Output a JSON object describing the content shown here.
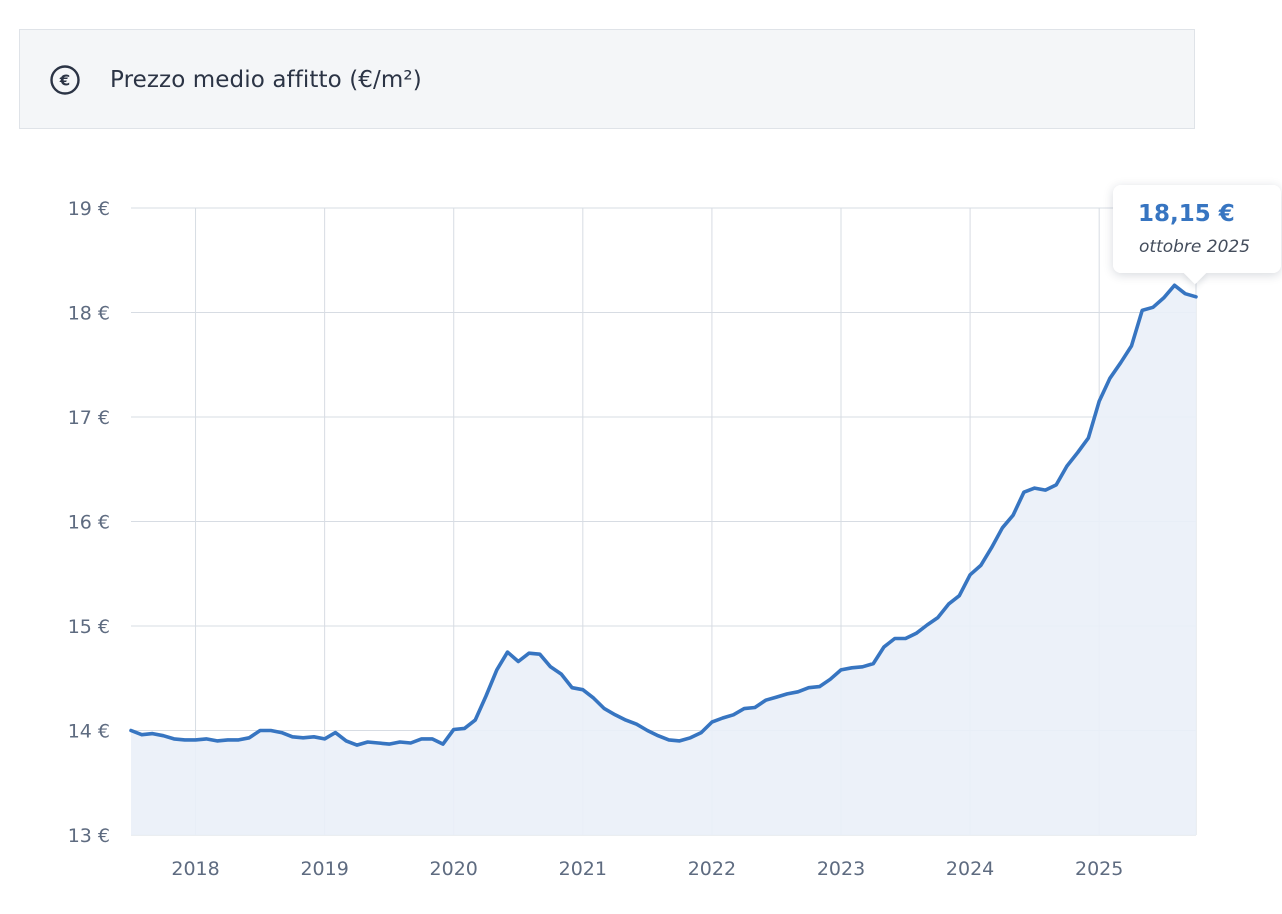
{
  "header": {
    "title": "Prezzo medio affitto (€/m²)",
    "icon": "euro-circle-icon",
    "icon_symbol": "€"
  },
  "tooltip": {
    "value": "18,15 €",
    "date": "ottobre 2025"
  },
  "colors": {
    "line": "#3775c1",
    "area": "#eaf0f8",
    "grid": "#d7dce3",
    "header_bg": "#f4f6f8"
  },
  "chart_data": {
    "type": "area",
    "title": "Prezzo medio affitto (€/m²)",
    "ylim": [
      13,
      19
    ],
    "y_ticks": [
      {
        "value": 13,
        "label": "13 €"
      },
      {
        "value": 14,
        "label": "14 €"
      },
      {
        "value": 15,
        "label": "15 €"
      },
      {
        "value": 16,
        "label": "16 €"
      },
      {
        "value": 17,
        "label": "17 €"
      },
      {
        "value": 18,
        "label": "18 €"
      },
      {
        "value": 19,
        "label": "19 €"
      }
    ],
    "x_ticks": [
      "2018",
      "2019",
      "2020",
      "2021",
      "2022",
      "2023",
      "2024",
      "2025"
    ],
    "x_start": "2017-07",
    "grid": true,
    "series": [
      {
        "x": [
          "2017-07",
          "2017-08",
          "2017-09",
          "2017-10",
          "2017-11",
          "2017-12",
          "2018-01",
          "2018-02",
          "2018-03",
          "2018-04",
          "2018-05",
          "2018-06",
          "2018-07",
          "2018-08",
          "2018-09",
          "2018-10",
          "2018-11",
          "2018-12",
          "2019-01",
          "2019-02",
          "2019-03",
          "2019-04",
          "2019-05",
          "2019-06",
          "2019-07",
          "2019-08",
          "2019-09",
          "2019-10",
          "2019-11",
          "2019-12",
          "2020-01",
          "2020-02",
          "2020-03",
          "2020-04",
          "2020-05",
          "2020-06",
          "2020-07",
          "2020-08",
          "2020-09",
          "2020-10",
          "2020-11",
          "2020-12",
          "2021-01",
          "2021-02",
          "2021-03",
          "2021-04",
          "2021-05",
          "2021-06",
          "2021-07",
          "2021-08",
          "2021-09",
          "2021-10",
          "2021-11",
          "2021-12",
          "2022-01",
          "2022-02",
          "2022-03",
          "2022-04",
          "2022-05",
          "2022-06",
          "2022-07",
          "2022-08",
          "2022-09",
          "2022-10",
          "2022-11",
          "2022-12",
          "2023-01",
          "2023-02",
          "2023-03",
          "2023-04",
          "2023-05",
          "2023-06",
          "2023-07",
          "2023-08",
          "2023-09",
          "2023-10",
          "2023-11",
          "2023-12",
          "2024-01",
          "2024-02",
          "2024-03",
          "2024-04",
          "2024-05",
          "2024-06",
          "2024-07",
          "2024-08",
          "2024-09",
          "2024-10",
          "2024-11",
          "2024-12",
          "2025-01",
          "2025-02",
          "2025-03",
          "2025-04",
          "2025-05",
          "2025-06",
          "2025-07",
          "2025-08",
          "2025-09",
          "2025-10"
        ],
        "values": [
          14.0,
          13.96,
          13.97,
          13.95,
          13.92,
          13.91,
          13.91,
          13.92,
          13.9,
          13.91,
          13.91,
          13.93,
          14.0,
          14.0,
          13.98,
          13.94,
          13.93,
          13.94,
          13.92,
          13.98,
          13.9,
          13.86,
          13.89,
          13.88,
          13.87,
          13.89,
          13.88,
          13.92,
          13.92,
          13.87,
          14.01,
          14.02,
          14.1,
          14.33,
          14.58,
          14.75,
          14.66,
          14.74,
          14.73,
          14.61,
          14.54,
          14.41,
          14.39,
          14.31,
          14.21,
          14.15,
          14.1,
          14.06,
          14.0,
          13.95,
          13.91,
          13.9,
          13.93,
          13.98,
          14.08,
          14.12,
          14.15,
          14.21,
          14.22,
          14.29,
          14.32,
          14.35,
          14.37,
          14.41,
          14.42,
          14.49,
          14.58,
          14.6,
          14.61,
          14.64,
          14.8,
          14.88,
          14.88,
          14.93,
          15.01,
          15.08,
          15.21,
          15.29,
          15.49,
          15.58,
          15.75,
          15.94,
          16.06,
          16.28,
          16.32,
          16.3,
          16.35,
          16.53,
          16.66,
          16.8,
          17.15,
          17.37,
          17.52,
          17.68,
          18.02,
          18.05,
          18.14,
          18.26,
          18.18,
          18.15
        ]
      }
    ]
  }
}
